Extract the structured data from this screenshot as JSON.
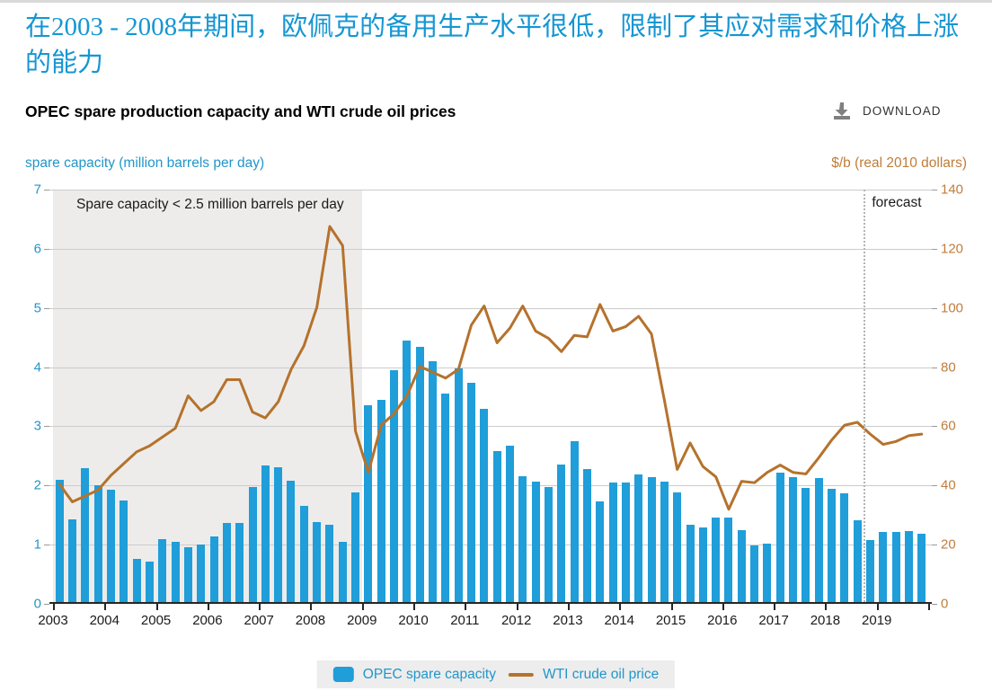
{
  "page": {
    "title_zh": "在2003 - 2008年期间，欧佩克的备用生产水平很低，限制了其应对需求和价格上涨的能力",
    "chart_title": "OPEC spare production capacity and WTI crude oil prices",
    "download_label": "DOWNLOAD"
  },
  "chart_data": {
    "type": "bar",
    "title": "OPEC spare production capacity and WTI crude oil prices",
    "left_axis": {
      "label": "spare capacity (million barrels per day)",
      "min": 0,
      "max": 7,
      "ticks": [
        0,
        1,
        2,
        3,
        4,
        5,
        6,
        7
      ]
    },
    "right_axis": {
      "label": "$/b (real 2010 dollars)",
      "min": 0,
      "max": 140,
      "ticks": [
        0,
        20,
        40,
        60,
        80,
        100,
        120,
        140
      ]
    },
    "x_years": [
      "2003",
      "2004",
      "2005",
      "2006",
      "2007",
      "2008",
      "2009",
      "2010",
      "2011",
      "2012",
      "2013",
      "2014",
      "2015",
      "2016",
      "2017",
      "2018",
      "2019"
    ],
    "quarters_per_year": 4,
    "annotation": "Spare capacity < 2.5 million barrels per day",
    "shaded_region": {
      "from_year": "2003",
      "to_year": "2008"
    },
    "forecast_label": "forecast",
    "forecast_starts_after_bar_index": 62,
    "grid": true,
    "legend_position": "bottom",
    "series": [
      {
        "name": "OPEC spare capacity",
        "type": "bar",
        "axis": "left",
        "color": "#1f9ed9",
        "values": [
          2.07,
          1.4,
          2.27,
          1.98,
          1.9,
          1.72,
          0.73,
          0.68,
          1.07,
          1.01,
          0.93,
          0.97,
          1.11,
          1.33,
          1.33,
          1.95,
          2.31,
          2.28,
          2.05,
          1.63,
          1.35,
          1.3,
          1.02,
          1.86,
          3.33,
          3.42,
          3.92,
          4.42,
          4.32,
          4.07,
          3.53,
          3.95,
          3.7,
          3.26,
          2.55,
          2.64,
          2.13,
          2.04,
          1.95,
          2.32,
          2.72,
          2.24,
          1.7,
          2.02,
          2.02,
          2.16,
          2.11,
          2.03,
          1.86,
          1.31,
          1.26,
          1.42,
          1.42,
          1.22,
          0.95,
          0.98,
          2.18,
          2.11,
          1.93,
          2.1,
          1.92,
          1.83,
          1.38,
          1.05,
          1.19,
          1.19,
          1.2,
          1.15
        ]
      },
      {
        "name": "WTI crude oil price",
        "type": "line",
        "axis": "right",
        "color": "#b5722c",
        "values": [
          40,
          34,
          36,
          38,
          43,
          47,
          51,
          53,
          56,
          59,
          70,
          65,
          68,
          75.5,
          75.5,
          64.5,
          62.5,
          68,
          79,
          87,
          100,
          127.5,
          121,
          58,
          44,
          60,
          64,
          70,
          80,
          78,
          76,
          79,
          94,
          100.5,
          88,
          93,
          100.5,
          92,
          89.5,
          85,
          90.5,
          90,
          101,
          92,
          93.5,
          97,
          91,
          68.5,
          45,
          54,
          46,
          42.5,
          31.5,
          41,
          40.5,
          44,
          46.5,
          44,
          43.5,
          49,
          55,
          60,
          61,
          57,
          53.5,
          54.5,
          56.5,
          57
        ]
      }
    ]
  },
  "colors": {
    "bar_blue": "#1f9ed9",
    "line_orange": "#b5722c",
    "title_blue": "#1596d3",
    "axis_text_blue": "#2196c9",
    "axis_text_orange": "#c07d3c",
    "gridline": "#cccccc",
    "shaded_region": "#edeceb",
    "legend_background": "#ededed"
  }
}
